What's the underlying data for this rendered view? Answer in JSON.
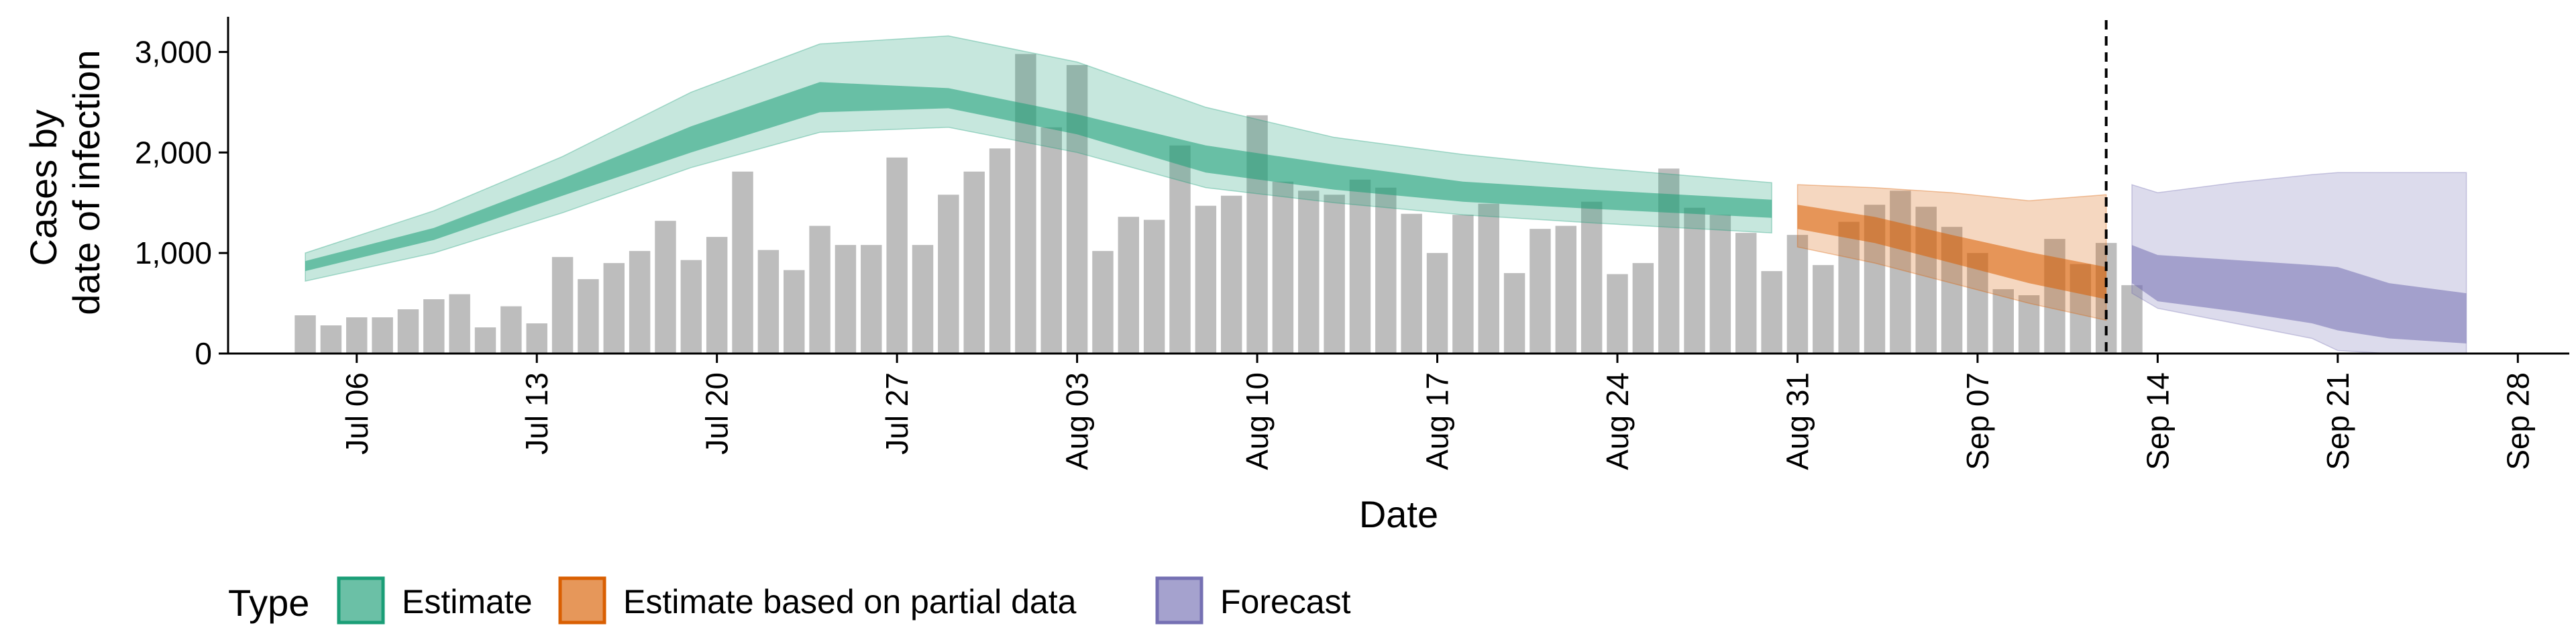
{
  "chart_data": {
    "type": "bar",
    "title": "",
    "xlabel": "Date",
    "ylabel": [
      "Cases by",
      "date of infection"
    ],
    "ylim": [
      0,
      3350
    ],
    "xlim": [
      "2020-07-01",
      "2020-09-30"
    ],
    "y_ticks": [
      0,
      1000,
      2000,
      3000
    ],
    "y_tick_labels": [
      "0",
      "1,000",
      "2,000",
      "3,000"
    ],
    "x_ticks": [
      "2020-07-06",
      "2020-07-13",
      "2020-07-20",
      "2020-07-27",
      "2020-08-03",
      "2020-08-10",
      "2020-08-17",
      "2020-08-24",
      "2020-08-31",
      "2020-09-07",
      "2020-09-14",
      "2020-09-21",
      "2020-09-28"
    ],
    "x_tick_labels": [
      "Jul 06",
      "Jul 13",
      "Jul 20",
      "Jul 27",
      "Aug 03",
      "Aug 10",
      "Aug 17",
      "Aug 24",
      "Aug 31",
      "Sep 07",
      "Sep 14",
      "Sep 21",
      "Sep 28"
    ],
    "grid": false,
    "forecast_date": "2020-09-12",
    "bars": {
      "color": "#bdbdbd",
      "start": "2020-07-04",
      "values": [
        380,
        280,
        360,
        360,
        440,
        540,
        590,
        260,
        470,
        300,
        960,
        740,
        900,
        1020,
        1320,
        930,
        1160,
        1810,
        1030,
        830,
        1270,
        1080,
        1080,
        1950,
        1080,
        1580,
        1810,
        2040,
        2980,
        2250,
        2870,
        1020,
        1360,
        1330,
        2070,
        1470,
        1570,
        2370,
        1710,
        1620,
        1580,
        1730,
        1650,
        1390,
        1000,
        1380,
        1490,
        800,
        1240,
        1270,
        1510,
        790,
        900,
        1840,
        1450,
        1380,
        1200,
        820,
        1180,
        880,
        1310,
        1480,
        1620,
        1460,
        1260,
        1000,
        640,
        580,
        1140,
        890,
        1100,
        680
      ]
    },
    "series": [
      {
        "name": "Estimate",
        "color": "#1b9e77",
        "x": [
          "2020-07-04",
          "2020-07-09",
          "2020-07-14",
          "2020-07-19",
          "2020-07-24",
          "2020-07-29",
          "2020-08-03",
          "2020-08-08",
          "2020-08-13",
          "2020-08-18",
          "2020-08-23",
          "2020-08-30"
        ],
        "lower90": [
          720,
          1000,
          1400,
          1850,
          2200,
          2250,
          2000,
          1650,
          1500,
          1380,
          1300,
          1200
        ],
        "lower50": [
          820,
          1130,
          1570,
          2000,
          2400,
          2440,
          2180,
          1800,
          1630,
          1510,
          1440,
          1350
        ],
        "upper50": [
          920,
          1250,
          1740,
          2260,
          2700,
          2640,
          2380,
          2070,
          1880,
          1710,
          1630,
          1530
        ],
        "upper90": [
          1000,
          1420,
          1960,
          2600,
          3080,
          3160,
          2900,
          2450,
          2150,
          1980,
          1850,
          1700
        ]
      },
      {
        "name": "Estimate based on partial data",
        "color": "#d95f02",
        "x": [
          "2020-08-31",
          "2020-09-03",
          "2020-09-06",
          "2020-09-09",
          "2020-09-12"
        ],
        "lower90": [
          1060,
          900,
          700,
          500,
          330
        ],
        "lower50": [
          1240,
          1100,
          900,
          700,
          540
        ],
        "upper50": [
          1480,
          1360,
          1180,
          1010,
          860
        ],
        "upper90": [
          1680,
          1650,
          1600,
          1520,
          1580
        ]
      },
      {
        "name": "Forecast",
        "color": "#7570b3",
        "x": [
          "2020-09-13",
          "2020-09-14",
          "2020-09-17",
          "2020-09-20",
          "2020-09-21",
          "2020-09-23",
          "2020-09-26"
        ],
        "lower90": [
          600,
          450,
          300,
          150,
          30,
          0,
          0
        ],
        "lower50": [
          700,
          520,
          420,
          300,
          230,
          150,
          100
        ],
        "upper50": [
          1080,
          980,
          930,
          880,
          860,
          700,
          600
        ],
        "upper90": [
          1680,
          1600,
          1700,
          1780,
          1800,
          1800,
          1800
        ]
      }
    ],
    "legend": {
      "position": "bottom-left",
      "title": "Type",
      "entries": [
        "Estimate",
        "Estimate based on partial data",
        "Forecast"
      ]
    }
  }
}
